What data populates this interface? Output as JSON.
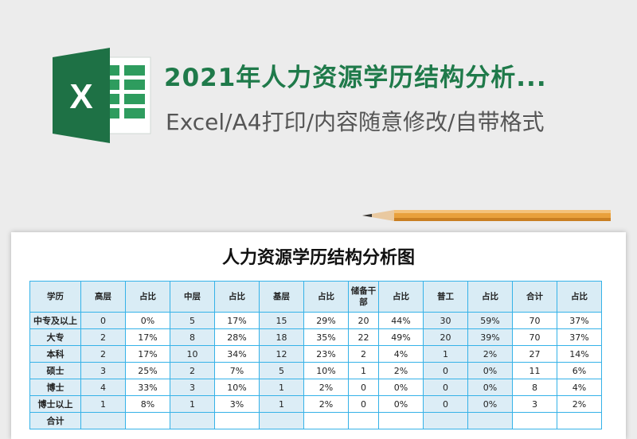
{
  "banner": {
    "title": "2021年人力资源学历结构分析...",
    "subtitle": "Excel/A4打印/内容随意修改/自带格式",
    "logo_letter": "X",
    "brand_color": "#1f7a4a"
  },
  "sheet": {
    "title": "人力资源学历结构分析图",
    "headers": [
      "学历",
      "高层",
      "占比",
      "中层",
      "占比",
      "基层",
      "占比",
      "储备干部",
      "占比",
      "普工",
      "占比",
      "合计",
      "占比"
    ],
    "rows": [
      [
        "中专及以上",
        "0",
        "0%",
        "5",
        "17%",
        "15",
        "29%",
        "20",
        "44%",
        "30",
        "59%",
        "70",
        "37%"
      ],
      [
        "大专",
        "2",
        "17%",
        "8",
        "28%",
        "18",
        "35%",
        "22",
        "49%",
        "20",
        "39%",
        "70",
        "37%"
      ],
      [
        "本科",
        "2",
        "17%",
        "10",
        "34%",
        "12",
        "23%",
        "2",
        "4%",
        "1",
        "2%",
        "27",
        "14%"
      ],
      [
        "硕士",
        "3",
        "25%",
        "2",
        "7%",
        "5",
        "10%",
        "1",
        "2%",
        "0",
        "0%",
        "11",
        "6%"
      ],
      [
        "博士",
        "4",
        "33%",
        "3",
        "10%",
        "1",
        "2%",
        "0",
        "0%",
        "0",
        "0%",
        "8",
        "4%"
      ],
      [
        "博士以上",
        "1",
        "8%",
        "1",
        "3%",
        "1",
        "2%",
        "0",
        "0%",
        "0",
        "0%",
        "3",
        "2%"
      ],
      [
        "合计",
        "",
        "",
        "",
        "",
        "",
        "",
        "",
        "",
        "",
        "",
        "",
        ""
      ]
    ]
  }
}
